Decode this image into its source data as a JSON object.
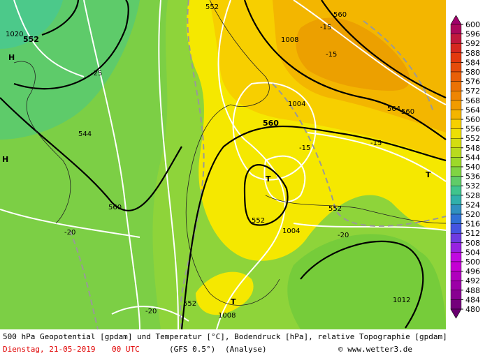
{
  "map": {
    "labels": [
      "1020",
      "552",
      "H",
      "H",
      "-25",
      "544",
      "560",
      "-20",
      "-20",
      "552",
      "1008",
      "T",
      "T",
      "552",
      "1004",
      "1004",
      "560",
      "-15",
      "1008",
      "-15",
      "-15",
      "552",
      "560",
      "564",
      "560",
      "-15",
      "T",
      "552",
      "-20",
      "1012"
    ]
  },
  "colorbar": {
    "ticks": [
      600,
      596,
      592,
      588,
      584,
      580,
      576,
      572,
      568,
      564,
      560,
      556,
      552,
      548,
      544,
      540,
      536,
      532,
      528,
      524,
      520,
      516,
      512,
      508,
      504,
      500,
      496,
      492,
      488,
      484,
      480
    ]
  },
  "footer": {
    "line1": "500 hPa Geopotential [gpdam] und Temperatur [°C], Bodendruck [hPa], relative Topographie [gpdam]",
    "date": "Dienstag, 21-05-2019",
    "time": "00 UTC",
    "model": "(GFS 0.5°)",
    "analysis": "(Analyse)",
    "credit": "© www.wetter3.de"
  }
}
